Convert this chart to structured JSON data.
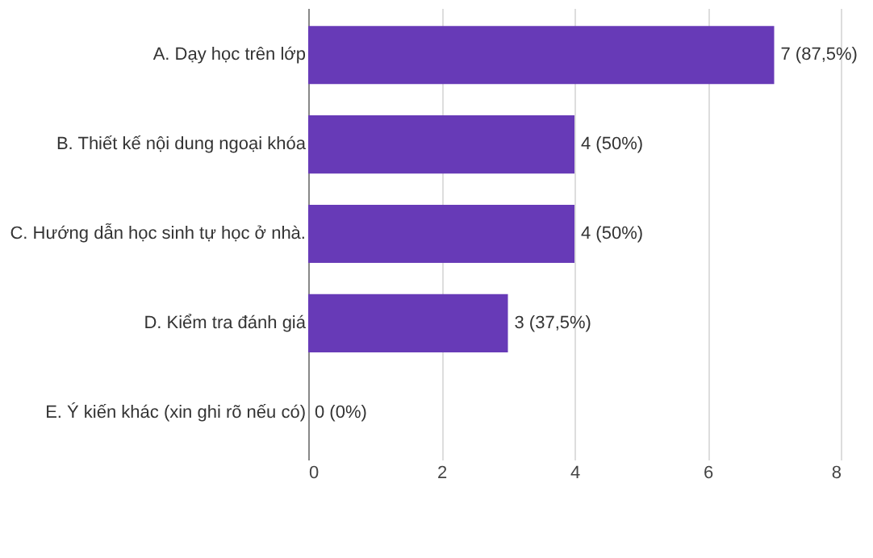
{
  "chart_data": {
    "type": "bar",
    "orientation": "horizontal",
    "categories": [
      "A. Dạy học trên lớp",
      "B. Thiết kế nội dung ngoại khóa",
      "C. Hướng dẫn học sinh tự học ở nhà.",
      "D. Kiểm tra đánh giá",
      "E. Ý kiến khác (xin ghi rõ nếu có)"
    ],
    "values": [
      7,
      4,
      4,
      3,
      0
    ],
    "value_labels": [
      "7 (87,5%)",
      "4 (50%)",
      "4 (50%)",
      "3 (37,5%)",
      "0 (0%)"
    ],
    "color": "#673ab7",
    "xlim": [
      0,
      8
    ],
    "xticks": [
      0,
      2,
      4,
      6,
      8
    ],
    "grid": "x"
  }
}
